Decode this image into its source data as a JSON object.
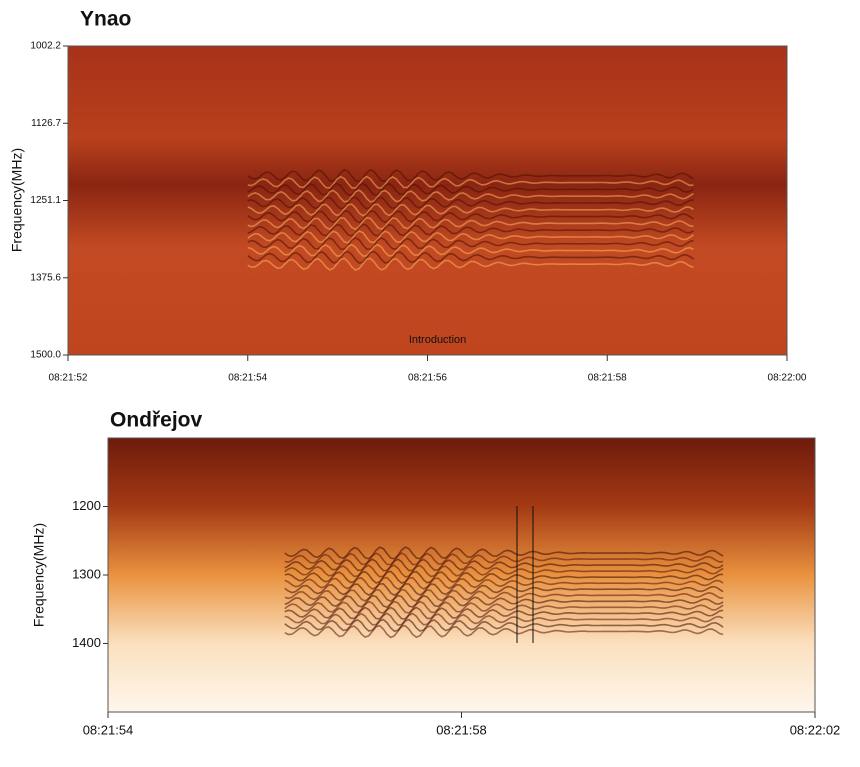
{
  "chart_data": [
    {
      "type": "spectrogram",
      "title": "Ynao",
      "ylabel": "Frequency(MHz)",
      "annotation": "Introduction",
      "ylim": [
        1002.2,
        {
          "value": 1500,
          "label": "1500.0"
        }
      ],
      "yticks": [
        1002.2,
        1126.7,
        1251.1,
        1375.6,
        {
          "value": 1500,
          "label": "1500.0"
        }
      ],
      "xticks": [
        "08:21:52",
        "08:21:54",
        "08:21:56",
        "08:21:58",
        "08:22:00"
      ]
    },
    {
      "type": "spectrogram",
      "title": "Ondřejov",
      "ylabel": "Frequency(MHz)",
      "ylim": [
        1100,
        1500
      ],
      "yticks": [
        1200,
        1300,
        1400
      ],
      "xticks": [
        "08:21:54",
        "08:21:58",
        "08:22:02"
      ]
    }
  ]
}
